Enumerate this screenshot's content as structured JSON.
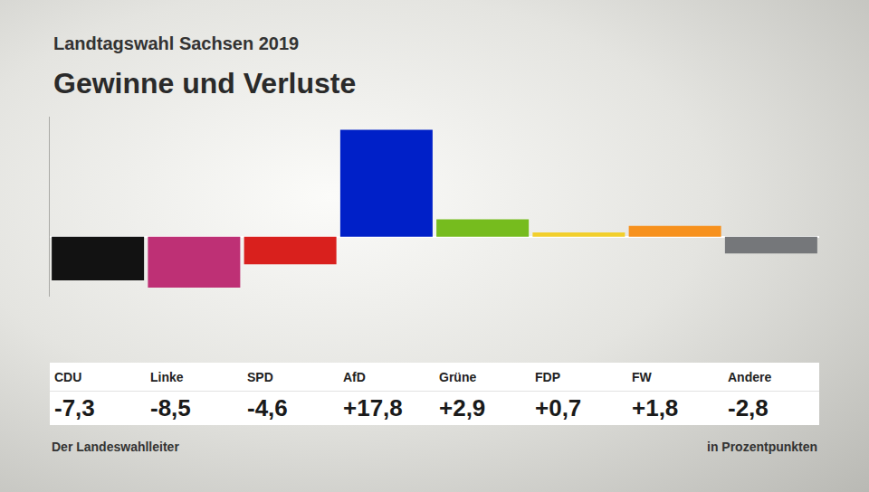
{
  "chart_data": {
    "type": "bar",
    "subtitle": "Landtagswahl Sachsen 2019",
    "title": "Gewinne und Verluste",
    "categories": [
      "CDU",
      "Linke",
      "SPD",
      "AfD",
      "Grüne",
      "FDP",
      "FW",
      "Andere"
    ],
    "values": [
      -7.3,
      -8.5,
      -4.6,
      17.8,
      2.9,
      0.7,
      1.8,
      -2.8
    ],
    "value_labels": [
      "-7,3",
      "-8,5",
      "-4,6",
      "+17,8",
      "+2,9",
      "+0,7",
      "+1,8",
      "-2,8"
    ],
    "colors": [
      "#121212",
      "#be3075",
      "#d9201d",
      "#0020c8",
      "#76bc1e",
      "#f2cf2c",
      "#f7911d",
      "#75777a"
    ],
    "ylim": [
      -10,
      20
    ],
    "yticks": [
      0
    ],
    "grid": true,
    "tick_labels": false,
    "data_labels": true,
    "source": "Der Landeswahlleiter",
    "unit": "in Prozentpunkten"
  }
}
